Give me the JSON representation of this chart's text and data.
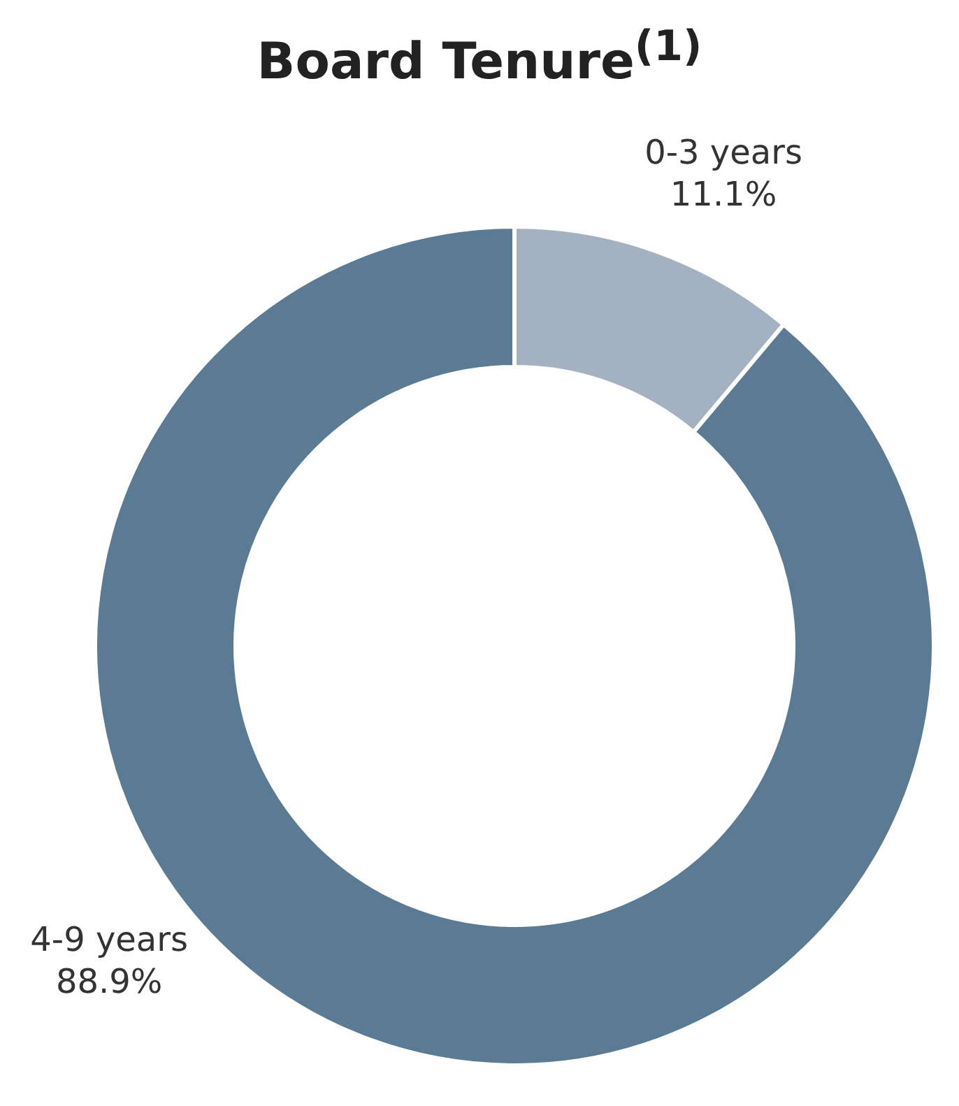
{
  "chart_data": {
    "type": "donut",
    "title": "Board Tenure$^{(1)}$",
    "categories": [
      "0-3 years",
      "4-9 years"
    ],
    "values": [
      11.1,
      88.9
    ],
    "value_labels": [
      "11.1%",
      "88.9%"
    ],
    "colors": [
      "#a3b1c0",
      "#5b7b94"
    ]
  }
}
